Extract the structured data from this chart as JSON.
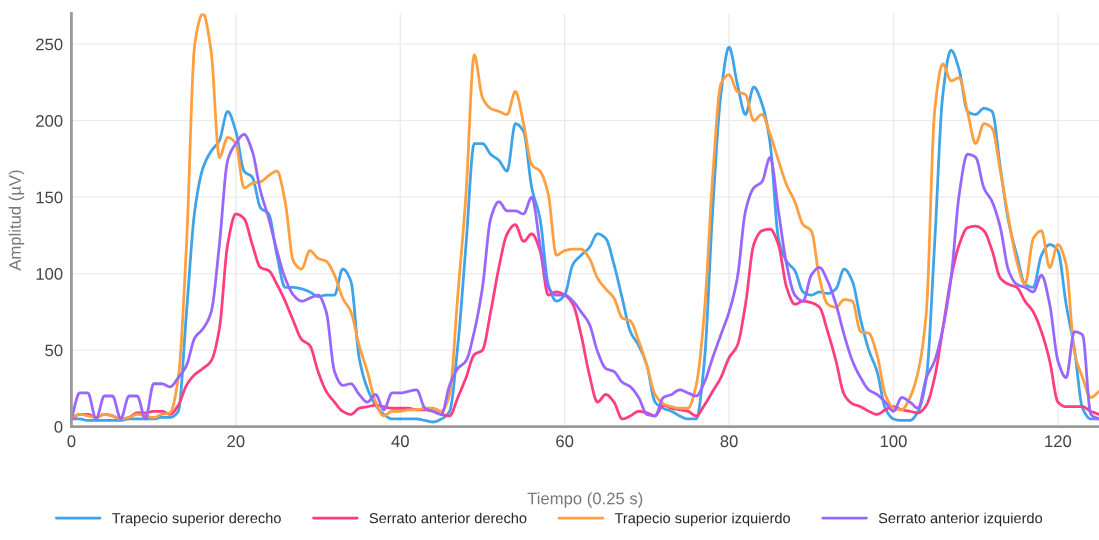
{
  "chart_data": {
    "type": "line",
    "xlabel": "Tiempo (0.25 s)",
    "ylabel": "Amplitud (µV)",
    "x": [
      0,
      1,
      2,
      3,
      4,
      5,
      6,
      7,
      8,
      9,
      10,
      11,
      12,
      13,
      14,
      15,
      16,
      17,
      18,
      19,
      20,
      21,
      22,
      23,
      24,
      25,
      26,
      27,
      28,
      29,
      30,
      31,
      32,
      33,
      34,
      35,
      36,
      37,
      38,
      39,
      40,
      41,
      42,
      43,
      44,
      45,
      46,
      47,
      48,
      49,
      50,
      51,
      52,
      53,
      54,
      55,
      56,
      57,
      58,
      59,
      60,
      61,
      62,
      63,
      64,
      65,
      66,
      67,
      68,
      69,
      70,
      71,
      72,
      73,
      74,
      75,
      76,
      77,
      78,
      79,
      80,
      81,
      82,
      83,
      84,
      85,
      86,
      87,
      88,
      89,
      90,
      91,
      92,
      93,
      94,
      95,
      96,
      97,
      98,
      99,
      100,
      101,
      102,
      103,
      104,
      105,
      106,
      107,
      108,
      109,
      110,
      111,
      112,
      113,
      114,
      115,
      116,
      117,
      118,
      119,
      120,
      121,
      122,
      123,
      124,
      125
    ],
    "series": [
      {
        "name": "Trapecio superior derecho",
        "color": "#3ea3e8",
        "values": [
          5,
          5,
          4,
          4,
          4,
          4,
          4,
          5,
          5,
          5,
          5,
          6,
          6,
          10,
          75,
          141,
          169,
          180,
          187,
          206,
          193,
          167,
          163,
          143,
          139,
          112,
          91,
          91,
          90,
          88,
          85,
          86,
          86,
          103,
          95,
          45,
          25,
          14,
          8,
          5,
          5,
          5,
          5,
          4,
          3,
          5,
          10,
          53,
          119,
          185,
          185,
          178,
          174,
          167,
          198,
          193,
          156,
          136,
          93,
          82,
          86,
          106,
          112,
          117,
          126,
          123,
          106,
          84,
          62,
          53,
          40,
          16,
          12,
          10,
          7,
          5,
          5,
          43,
          141,
          217,
          248,
          224,
          204,
          222,
          211,
          185,
          123,
          108,
          102,
          88,
          86,
          88,
          87,
          90,
          103,
          95,
          70,
          50,
          36,
          12,
          5,
          4,
          4,
          10,
          32,
          119,
          217,
          246,
          233,
          206,
          204,
          208,
          206,
          169,
          134,
          112,
          93,
          91,
          112,
          119,
          115,
          80,
          51,
          12,
          5,
          5
        ]
      },
      {
        "name": "Serrato anterior derecho",
        "color": "#ff3d7f",
        "values": [
          5,
          8,
          8,
          6,
          8,
          7,
          5,
          6,
          9,
          9,
          10,
          10,
          8,
          14,
          27,
          34,
          38,
          43,
          64,
          119,
          139,
          136,
          119,
          104,
          102,
          93,
          82,
          69,
          57,
          53,
          36,
          23,
          16,
          10,
          8,
          12,
          13,
          14,
          13,
          12,
          12,
          12,
          11,
          11,
          10,
          8,
          7,
          19,
          32,
          47,
          50,
          75,
          104,
          126,
          132,
          121,
          126,
          115,
          86,
          88,
          86,
          80,
          60,
          34,
          16,
          21,
          16,
          5,
          7,
          10,
          9,
          7,
          14,
          12,
          11,
          10,
          7,
          14,
          23,
          32,
          45,
          53,
          80,
          119,
          128,
          129,
          119,
          91,
          80,
          82,
          81,
          78,
          62,
          43,
          21,
          15,
          13,
          10,
          8,
          11,
          13,
          11,
          10,
          9,
          14,
          32,
          64,
          97,
          119,
          130,
          131,
          128,
          115,
          97,
          93,
          91,
          82,
          75,
          62,
          43,
          16,
          13,
          13,
          13,
          10,
          8
        ]
      },
      {
        "name": "Trapecio superior izquierdo",
        "color": "#ff9f40",
        "values": [
          6,
          8,
          7,
          6,
          8,
          7,
          5,
          6,
          8,
          7,
          6,
          8,
          9,
          32,
          119,
          250,
          270,
          245,
          176,
          189,
          185,
          156,
          159,
          160,
          164,
          167,
          147,
          108,
          103,
          115,
          110,
          108,
          99,
          84,
          75,
          53,
          36,
          16,
          7,
          10,
          10,
          11,
          11,
          12,
          12,
          10,
          21,
          86,
          152,
          243,
          215,
          208,
          206,
          204,
          219,
          198,
          171,
          167,
          152,
          112,
          115,
          116,
          116,
          110,
          97,
          90,
          84,
          71,
          69,
          56,
          40,
          21,
          15,
          13,
          12,
          12,
          27,
          75,
          163,
          224,
          230,
          219,
          217,
          200,
          204,
          191,
          174,
          158,
          147,
          132,
          128,
          97,
          80,
          78,
          83,
          82,
          62,
          61,
          47,
          21,
          12,
          11,
          19,
          36,
          75,
          206,
          237,
          226,
          228,
          206,
          185,
          198,
          195,
          167,
          136,
          108,
          93,
          123,
          128,
          104,
          119,
          106,
          49,
          32,
          19,
          23
        ]
      },
      {
        "name": "Serrato anterior izquierdo",
        "color": "#9966ff",
        "values": [
          5,
          22,
          22,
          5,
          20,
          20,
          5,
          20,
          20,
          5,
          28,
          28,
          26,
          32,
          40,
          58,
          64,
          75,
          119,
          174,
          185,
          191,
          180,
          154,
          136,
          115,
          97,
          86,
          82,
          84,
          86,
          75,
          36,
          27,
          28,
          21,
          16,
          21,
          11,
          22,
          22,
          23,
          24,
          12,
          10,
          8,
          27,
          38,
          43,
          62,
          91,
          136,
          147,
          141,
          141,
          139,
          150,
          119,
          91,
          86,
          86,
          82,
          75,
          67,
          49,
          38,
          36,
          29,
          26,
          19,
          8,
          7,
          19,
          21,
          24,
          22,
          20,
          29,
          45,
          60,
          75,
          97,
          141,
          156,
          160,
          176,
          141,
          106,
          86,
          82,
          99,
          104,
          95,
          80,
          60,
          43,
          32,
          24,
          21,
          16,
          10,
          19,
          16,
          12,
          32,
          43,
          64,
          97,
          152,
          178,
          176,
          156,
          147,
          130,
          102,
          93,
          91,
          88,
          99,
          80,
          43,
          32,
          62,
          60,
          8,
          5
        ]
      }
    ],
    "xlim": [
      0,
      125
    ],
    "ylim": [
      0,
      270
    ],
    "xticks": [
      0,
      20,
      40,
      60,
      80,
      100,
      120
    ],
    "yticks": [
      0,
      50,
      100,
      150,
      200,
      250
    ],
    "grid": true,
    "legend": "bottom"
  }
}
